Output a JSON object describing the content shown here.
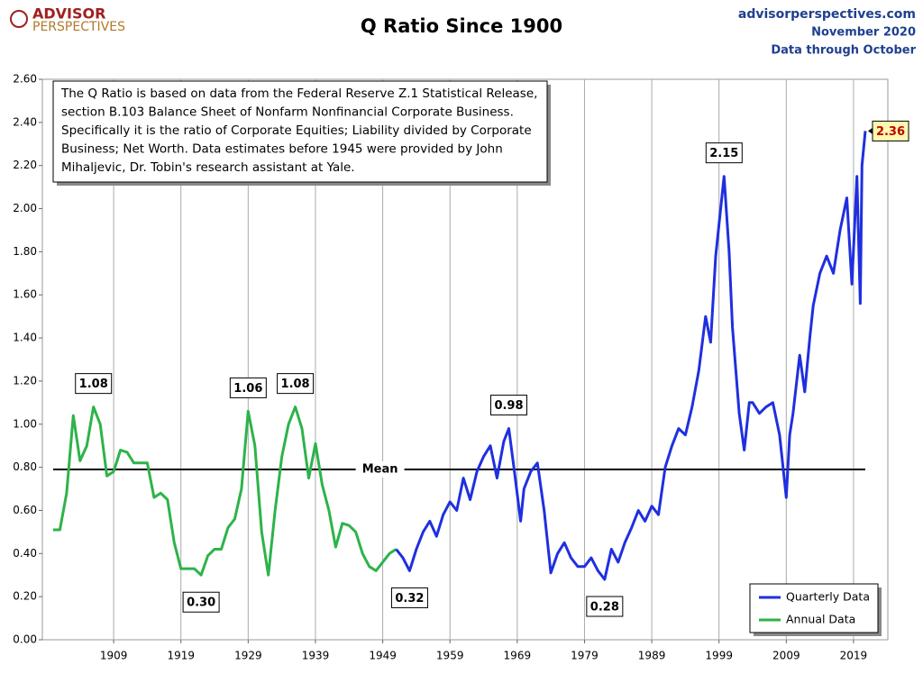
{
  "chart_data": {
    "type": "line",
    "brand": [
      "ADVISOR",
      "PERSPECTIVES"
    ],
    "title": "Q Ratio Since 1900",
    "source": [
      "advisorperspectives.com",
      "November 2020",
      "Data through October"
    ],
    "note": [
      "The Q Ratio is based on data from the Federal Reserve Z.1 Statistical Release,",
      "section B.103  Balance Sheet of Nonfarm Nonfinancial Corporate Business.",
      "Specifically it is the ratio  of Corporate Equities; Liability divided by Corporate",
      "Business; Net Worth.  Data estimates before 1945 were provided by John",
      "Mihaljevic, Dr. Tobin's research assistant at Yale."
    ],
    "xlim": [
      1898.4,
      2024.1
    ],
    "xticks": [
      1909,
      1919,
      1929,
      1939,
      1949,
      1959,
      1969,
      1979,
      1989,
      1999,
      2009,
      2019
    ],
    "ylim": [
      0,
      2.6
    ],
    "yticks": [
      {
        "value": 0,
        "label": "0.00"
      },
      {
        "value": 0.2,
        "label": "0.20"
      },
      {
        "value": 0.4,
        "label": "0.40"
      },
      {
        "value": 0.6,
        "label": "0.60"
      },
      {
        "value": 0.8,
        "label": "0.80"
      },
      {
        "value": 1.0,
        "label": "1.00"
      },
      {
        "value": 1.2,
        "label": "1.20"
      },
      {
        "value": 1.4,
        "label": "1.40"
      },
      {
        "value": 1.6,
        "label": "1.60"
      },
      {
        "value": 1.8,
        "label": "1.80"
      },
      {
        "value": 2.0,
        "label": "2.00"
      },
      {
        "value": 2.2,
        "label": "2.20"
      },
      {
        "value": 2.4,
        "label": "2.40"
      },
      {
        "value": 2.6,
        "label": "2.60"
      }
    ],
    "grid": "x",
    "legend": "lower right",
    "mean": {
      "label": "Mean",
      "value": 0.79
    },
    "series": [
      {
        "name": "Quarterly Data",
        "color": "#1f2fe0",
        "x": [
          1951,
          1952,
          1953,
          1954,
          1955,
          1956,
          1957,
          1958,
          1959,
          1960,
          1961,
          1962,
          1963,
          1964,
          1965,
          1966,
          1967,
          1967.75,
          1968.5,
          1969.5,
          1970,
          1971,
          1972,
          1973,
          1974,
          1975,
          1976,
          1977,
          1978,
          1979,
          1980,
          1981,
          1982,
          1983,
          1984,
          1985,
          1986,
          1987,
          1988,
          1989,
          1990,
          1991,
          1992,
          1993,
          1994,
          1995,
          1996,
          1997,
          1997.75,
          1998.5,
          1999.75,
          2000.5,
          2001,
          2002,
          2002.75,
          2003.5,
          2004,
          2005,
          2006,
          2007,
          2008,
          2009,
          2009.5,
          2010,
          2011,
          2011.75,
          2012.5,
          2013,
          2014,
          2015,
          2016,
          2017,
          2018,
          2018.75,
          2019.5,
          2020,
          2020.25,
          2020.75
        ],
        "values": [
          0.42,
          0.38,
          0.32,
          0.42,
          0.5,
          0.55,
          0.48,
          0.58,
          0.64,
          0.6,
          0.75,
          0.65,
          0.78,
          0.85,
          0.9,
          0.75,
          0.92,
          0.98,
          0.8,
          0.55,
          0.7,
          0.78,
          0.82,
          0.6,
          0.31,
          0.4,
          0.45,
          0.38,
          0.34,
          0.34,
          0.38,
          0.32,
          0.28,
          0.42,
          0.36,
          0.45,
          0.52,
          0.6,
          0.55,
          0.62,
          0.58,
          0.8,
          0.9,
          0.98,
          0.95,
          1.08,
          1.25,
          1.5,
          1.38,
          1.78,
          2.15,
          1.8,
          1.45,
          1.05,
          0.88,
          1.1,
          1.1,
          1.05,
          1.08,
          1.1,
          0.95,
          0.66,
          0.95,
          1.05,
          1.32,
          1.15,
          1.4,
          1.55,
          1.7,
          1.78,
          1.7,
          1.9,
          2.05,
          1.65,
          2.15,
          1.56,
          2.2,
          2.36
        ]
      },
      {
        "name": "Annual Data",
        "color": "#2db34a",
        "x": [
          1900,
          1901,
          1902,
          1903,
          1904,
          1905,
          1906,
          1907,
          1908,
          1909,
          1910,
          1911,
          1912,
          1913,
          1914,
          1915,
          1916,
          1917,
          1918,
          1919,
          1920,
          1921,
          1922,
          1923,
          1924,
          1925,
          1926,
          1927,
          1928,
          1929,
          1930,
          1931,
          1932,
          1933,
          1934,
          1935,
          1936,
          1937,
          1938,
          1939,
          1940,
          1941,
          1942,
          1943,
          1944,
          1945,
          1946,
          1947,
          1948,
          1949,
          1950,
          1951
        ],
        "values": [
          0.51,
          0.51,
          0.68,
          1.04,
          0.83,
          0.9,
          1.08,
          1.0,
          0.76,
          0.78,
          0.88,
          0.87,
          0.82,
          0.82,
          0.82,
          0.66,
          0.68,
          0.65,
          0.45,
          0.33,
          0.33,
          0.33,
          0.3,
          0.39,
          0.42,
          0.42,
          0.52,
          0.56,
          0.7,
          1.06,
          0.9,
          0.5,
          0.3,
          0.6,
          0.85,
          1.0,
          1.08,
          0.98,
          0.75,
          0.91,
          0.72,
          0.6,
          0.43,
          0.54,
          0.53,
          0.5,
          0.4,
          0.34,
          0.32,
          0.36,
          0.4,
          0.42
        ]
      }
    ],
    "annotations": [
      {
        "text": "1.08",
        "x": 1906,
        "y": 1.08,
        "position": "above"
      },
      {
        "text": "1.06",
        "x": 1929,
        "y": 1.06,
        "position": "above"
      },
      {
        "text": "1.08",
        "x": 1936,
        "y": 1.08,
        "position": "above"
      },
      {
        "text": "0.30",
        "x": 1922,
        "y": 0.3,
        "position": "below"
      },
      {
        "text": "0.32",
        "x": 1953,
        "y": 0.32,
        "position": "below"
      },
      {
        "text": "0.98",
        "x": 1967.75,
        "y": 0.98,
        "position": "above"
      },
      {
        "text": "0.28",
        "x": 1982,
        "y": 0.28,
        "position": "below"
      },
      {
        "text": "2.15",
        "x": 1999.75,
        "y": 2.15,
        "position": "above"
      },
      {
        "text": "2.36",
        "x": 2020.75,
        "y": 2.36,
        "position": "right"
      }
    ]
  }
}
